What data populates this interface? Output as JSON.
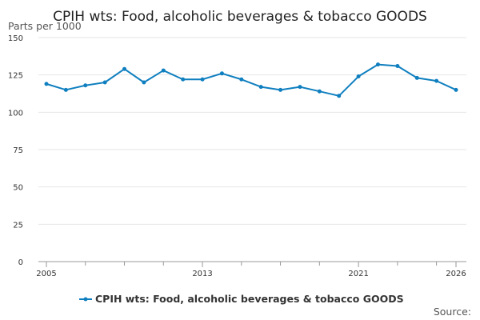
{
  "chart_data": {
    "type": "line",
    "title": "CPIH wts: Food, alcoholic beverages & tobacco GOODS",
    "unit_label": "Parts per 1000",
    "source_label": "Source:",
    "ylim": [
      0,
      150
    ],
    "y_ticks": [
      0,
      25,
      50,
      75,
      100,
      125,
      150
    ],
    "xlim": [
      2005,
      2026
    ],
    "x_tick_labels": [
      "2005",
      "2013",
      "2021",
      "2026"
    ],
    "grid": true,
    "legend_position": "bottom",
    "series": [
      {
        "name": "CPIH wts: Food, alcoholic beverages & tobacco GOODS",
        "color": "#0f7fbf",
        "x": [
          2005,
          2006,
          2007,
          2008,
          2009,
          2010,
          2011,
          2012,
          2013,
          2014,
          2015,
          2016,
          2017,
          2018,
          2019,
          2020,
          2021,
          2022,
          2023,
          2024,
          2025,
          2026
        ],
        "values": [
          119,
          115,
          118,
          120,
          129,
          120,
          128,
          122,
          122,
          126,
          122,
          117,
          115,
          117,
          114,
          111,
          124,
          132,
          131,
          123,
          121,
          115
        ]
      }
    ]
  }
}
